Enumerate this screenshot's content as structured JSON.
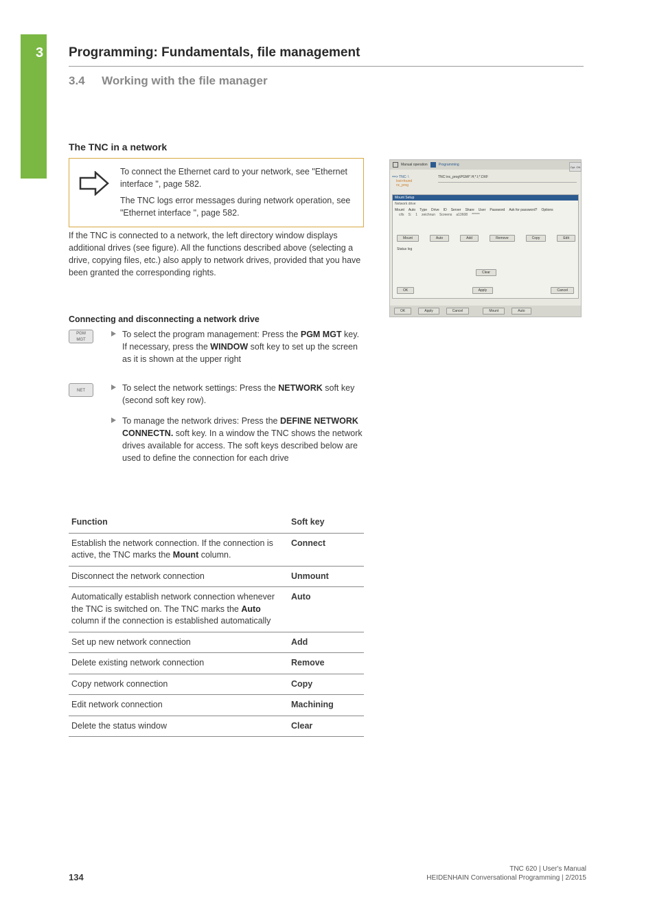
{
  "chapter": {
    "num": "3",
    "title": "Programming: Fundamentals, file management"
  },
  "section": {
    "num": "3.4",
    "title": "Working with the file manager"
  },
  "subheading": "The TNC in a network",
  "note": {
    "p1": "To connect the Ethernet card to your network, see \"Ethernet interface \", page 582.",
    "p2": "The TNC logs error messages during network operation, see \"Ethernet interface \", page 582."
  },
  "body1": "If the TNC is connected to a network, the left directory window displays additional drives (see figure). All the functions described above (selecting a drive, copying files, etc.) also apply to network drives, provided that you have been granted the corresponding rights.",
  "subheading2": "Connecting and disconnecting a network drive",
  "keys": {
    "pgm_mgt": "PGM\nMGT",
    "net": "NET"
  },
  "bullets": {
    "b1_pre": "To select the program management: Press the ",
    "b1_k1": "PGM MGT",
    "b1_mid": " key. If necessary, press the ",
    "b1_k2": "WINDOW",
    "b1_post": " soft key to set up the screen as it is shown at the upper right",
    "b2_pre": "To select the network settings: Press the ",
    "b2_k1": "NETWORK",
    "b2_post": " soft key (second soft key row).",
    "b3_pre": "To manage the network drives: Press the ",
    "b3_k1": "DEFINE NETWORK CONNECTN.",
    "b3_post": " soft key. In a window the TNC shows the network drives available for access. The soft keys described below are used to define the connection for each drive"
  },
  "table": {
    "h1": "Function",
    "h2": "Soft key",
    "rows": [
      {
        "f_pre": "Establish the network connection. If the connection is active, the TNC marks the ",
        "f_b": "Mount",
        "f_post": " column.",
        "k": "Connect"
      },
      {
        "f_pre": "Disconnect the network connection",
        "f_b": "",
        "f_post": "",
        "k": "Unmount"
      },
      {
        "f_pre": "Automatically establish network connection whenever the TNC is switched on. The TNC marks the ",
        "f_b": "Auto",
        "f_post": " column if the connection is established automatically",
        "k": "Auto"
      },
      {
        "f_pre": "Set up new network connection",
        "f_b": "",
        "f_post": "",
        "k": "Add"
      },
      {
        "f_pre": "Delete existing network connection",
        "f_b": "",
        "f_post": "",
        "k": "Remove"
      },
      {
        "f_pre": "Copy network connection",
        "f_b": "",
        "f_post": "",
        "k": "Copy"
      },
      {
        "f_pre": "Edit network connection",
        "f_b": "",
        "f_post": "",
        "k": "Machining"
      },
      {
        "f_pre": "Delete the status window",
        "f_b": "",
        "f_post": "",
        "k": "Clear"
      }
    ]
  },
  "screenshot": {
    "mode1": "Manual operation",
    "mode2": "Programming",
    "side_btn": "Opt. ON",
    "left_rows": [
      "==> TNC: \\",
      "lost+found",
      "nc_prog"
    ],
    "path": "TNC:\\nc_prog\\PGM\\*.H;*.I;*.DXF",
    "dialog_title": "Mount Setup",
    "dialog_sub": "Network drive",
    "cols": [
      "Mount",
      "Auto",
      "Type",
      "Drive",
      "ID",
      "Server",
      "Share",
      "User",
      "Password",
      "Ask for password?",
      "Options"
    ],
    "row_vals": [
      "",
      "cifs",
      "S:",
      "1",
      "zeichnun",
      "Screens",
      "a13608",
      "******",
      ""
    ],
    "btns1": [
      "Mount",
      "Auto",
      "Add",
      "Remove",
      "Copy",
      "Edit"
    ],
    "log_label": "Status log",
    "btns2": [
      "Clear"
    ],
    "btns3": [
      "OK",
      "Apply",
      "Cancel"
    ],
    "bottombar": [
      "OK",
      "Apply",
      "Cancel",
      "",
      "Mount",
      "Auto"
    ]
  },
  "footer": {
    "page": "134",
    "line1": "TNC 620 | User's Manual",
    "line2": "HEIDENHAIN Conversational Programming | 2/2015"
  },
  "colors": {
    "green": "#7bb843",
    "note_border": "#d8a840",
    "blue": "#2b5a8f",
    "orange": "#cc7a2a"
  }
}
